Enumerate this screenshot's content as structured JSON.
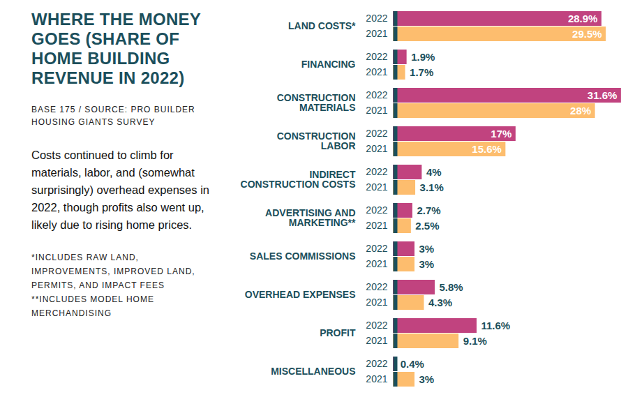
{
  "chart_data": {
    "type": "bar",
    "orientation": "horizontal",
    "title": "WHERE THE MONEY GOES (SHARE OF HOME BUILDING REVENUE IN 2022)",
    "subtitle": "BASE 175 / SOURCE: PRO BUILDER HOUSING GIANTS SURVEY",
    "annotations": [
      "Costs continued to climb for materials, labor, and (somewhat surprisingly) overhead expenses in 2022, though profits also went up, likely due to rising home prices.",
      "*INCLUDES RAW LAND, IMPROVEMENTS, IMPROVED LAND, PERMITS, AND IMPACT FEES",
      "**INCLUDES MODEL HOME MERCHANDISING"
    ],
    "categories": [
      "LAND COSTS*",
      "FINANCING",
      "CONSTRUCTION\nMATERIALS",
      "CONSTRUCTION\nLABOR",
      "INDIRECT\nCONSTRUCTION COSTS",
      "ADVERTISING AND\nMARKETING**",
      "SALES COMMISSIONS",
      "OVERHEAD EXPENSES",
      "PROFIT",
      "MISCELLANEOUS"
    ],
    "series": [
      {
        "name": "2022",
        "color": "#c1437f",
        "values": [
          28.9,
          1.9,
          31.6,
          17,
          4,
          2.7,
          3,
          5.8,
          11.6,
          0.4
        ],
        "value_labels": [
          "28.9%",
          "1.9%",
          "31.6%",
          "17%",
          "4%",
          "2.7%",
          "3%",
          "5.8%",
          "11.6%",
          "0.4%"
        ]
      },
      {
        "name": "2021",
        "color": "#fdbd6e",
        "values": [
          29.5,
          1.7,
          28,
          15.6,
          3.1,
          2.5,
          3,
          4.3,
          9.1,
          3
        ],
        "value_labels": [
          "29.5%",
          "1.7%",
          "28%",
          "15.6%",
          "3.1%",
          "2.5%",
          "3%",
          "4.3%",
          "9.1%",
          "3%"
        ]
      }
    ],
    "xlim": [
      0,
      32
    ],
    "xticks": [],
    "tick_labels": "y",
    "grid": false,
    "data_labels": true
  }
}
